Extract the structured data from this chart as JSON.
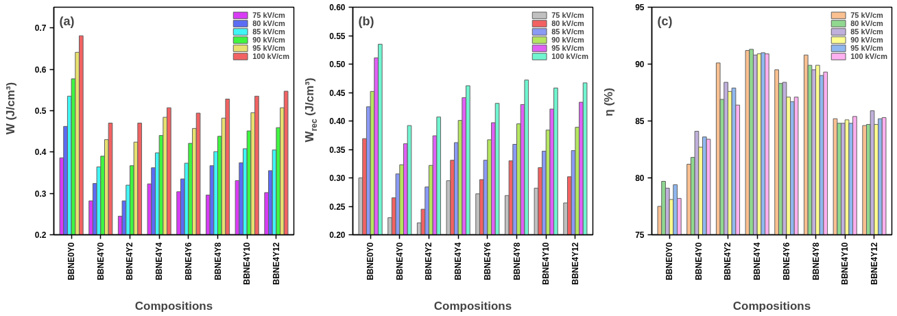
{
  "chart_data": [
    {
      "type": "bar",
      "title": "(a)",
      "xlabel": "Compositions",
      "ylabel": "W (J/cm³)",
      "legend": "top right",
      "categories": [
        "BBNE0Y0",
        "BBNE4Y0",
        "BBNE4Y2",
        "BBNE4Y4",
        "BBNE4Y6",
        "BBNE4Y8",
        "BBNE4Y10",
        "BBNE4Y12"
      ],
      "ylim": [
        0.2,
        0.75
      ],
      "yticks": [
        0.2,
        0.3,
        0.4,
        0.5,
        0.6,
        0.7
      ],
      "series": [
        {
          "name": "75 kV/cm",
          "color": "#d83cf5",
          "values": [
            0.386,
            0.282,
            0.245,
            0.323,
            0.304,
            0.296,
            0.331,
            0.302
          ]
        },
        {
          "name": "80 kV/cm",
          "color": "#5b6cf5",
          "values": [
            0.462,
            0.324,
            0.282,
            0.362,
            0.335,
            0.367,
            0.374,
            0.355
          ]
        },
        {
          "name": "85 kV/cm",
          "color": "#40f5f5",
          "values": [
            0.535,
            0.364,
            0.32,
            0.398,
            0.373,
            0.401,
            0.408,
            0.405
          ]
        },
        {
          "name": "90 kV/cm",
          "color": "#40f540",
          "values": [
            0.577,
            0.39,
            0.367,
            0.44,
            0.421,
            0.438,
            0.451,
            0.459
          ]
        },
        {
          "name": "95 kV/cm",
          "color": "#e8e070",
          "values": [
            0.641,
            0.43,
            0.424,
            0.484,
            0.457,
            0.482,
            0.495,
            0.507
          ]
        },
        {
          "name": "100 kV/cm",
          "color": "#f26262",
          "values": [
            0.681,
            0.47,
            0.47,
            0.507,
            0.494,
            0.528,
            0.535,
            0.547
          ]
        }
      ]
    },
    {
      "type": "bar",
      "title": "(b)",
      "xlabel": "Compositions",
      "ylabel": "W$_{rec}$ (J/cm³)",
      "legend": "top right",
      "categories": [
        "BBNE0Y0",
        "BBNE4Y0",
        "BBNE4Y2",
        "BBNE4Y4",
        "BBNE4Y6",
        "BBNE4Y8",
        "BBNE4Y10",
        "BBNE4Y12"
      ],
      "ylim": [
        0.2,
        0.6
      ],
      "yticks": [
        {
          "value": 0.2,
          "label": "0.20"
        },
        0.25,
        {
          "value": 0.3,
          "label": "0.30"
        },
        0.35,
        {
          "value": 0.4,
          "label": "0.40"
        },
        0.45,
        {
          "value": 0.5,
          "label": "0.50"
        },
        0.55,
        {
          "value": 0.6,
          "label": "0.60"
        }
      ],
      "series": [
        {
          "name": "75 kV/cm",
          "color": "#c0c0c0",
          "values": [
            0.3,
            0.23,
            0.221,
            0.295,
            0.272,
            0.269,
            0.282,
            0.256
          ]
        },
        {
          "name": "80 kV/cm",
          "color": "#f26262",
          "values": [
            0.369,
            0.265,
            0.245,
            0.331,
            0.297,
            0.33,
            0.318,
            0.302
          ]
        },
        {
          "name": "85 kV/cm",
          "color": "#8a9af5",
          "values": [
            0.425,
            0.307,
            0.284,
            0.362,
            0.331,
            0.359,
            0.347,
            0.348
          ]
        },
        {
          "name": "90 kV/cm",
          "color": "#b5e660",
          "values": [
            0.452,
            0.323,
            0.322,
            0.401,
            0.367,
            0.395,
            0.384,
            0.389
          ]
        },
        {
          "name": "95 kV/cm",
          "color": "#e060f5",
          "values": [
            0.511,
            0.36,
            0.374,
            0.441,
            0.397,
            0.429,
            0.421,
            0.433
          ]
        },
        {
          "name": "100 kV/cm",
          "color": "#70f5d0",
          "values": [
            0.535,
            0.392,
            0.407,
            0.462,
            0.431,
            0.472,
            0.458,
            0.467
          ]
        }
      ]
    },
    {
      "type": "bar",
      "title": "(c)",
      "xlabel": "Compositions",
      "ylabel": "η (%)",
      "legend": "top right",
      "categories": [
        "BBNE0Y0",
        "BBNE4Y0",
        "BBNE4Y2",
        "BBNE4Y4",
        "BBNE4Y6",
        "BBNE4Y8",
        "BBNE4Y10",
        "BBNE4Y12"
      ],
      "ylim": [
        75,
        95
      ],
      "yticks": [
        75,
        80,
        85,
        90,
        95
      ],
      "series": [
        {
          "name": "75 kV/cm",
          "color": "#fac090",
          "values": [
            77.5,
            81.2,
            90.1,
            91.2,
            89.5,
            90.8,
            85.2,
            84.6
          ]
        },
        {
          "name": "80 kV/cm",
          "color": "#90d890",
          "values": [
            79.7,
            81.8,
            86.9,
            91.3,
            88.3,
            89.9,
            84.8,
            84.7
          ]
        },
        {
          "name": "85 kV/cm",
          "color": "#c0b0dc",
          "values": [
            79.1,
            84.1,
            88.4,
            90.8,
            88.4,
            89.5,
            84.8,
            85.9
          ]
        },
        {
          "name": "90 kV/cm",
          "color": "#ffff90",
          "values": [
            78.1,
            82.7,
            87.6,
            90.9,
            87.1,
            89.9,
            85.1,
            84.7
          ]
        },
        {
          "name": "95 kV/cm",
          "color": "#90b8f0",
          "values": [
            79.4,
            83.6,
            87.9,
            91.0,
            86.7,
            89.0,
            84.8,
            85.2
          ]
        },
        {
          "name": "100 kV/cm",
          "color": "#ffb0f0",
          "values": [
            78.2,
            83.4,
            86.4,
            90.9,
            87.1,
            89.3,
            85.4,
            85.3
          ]
        }
      ]
    }
  ]
}
